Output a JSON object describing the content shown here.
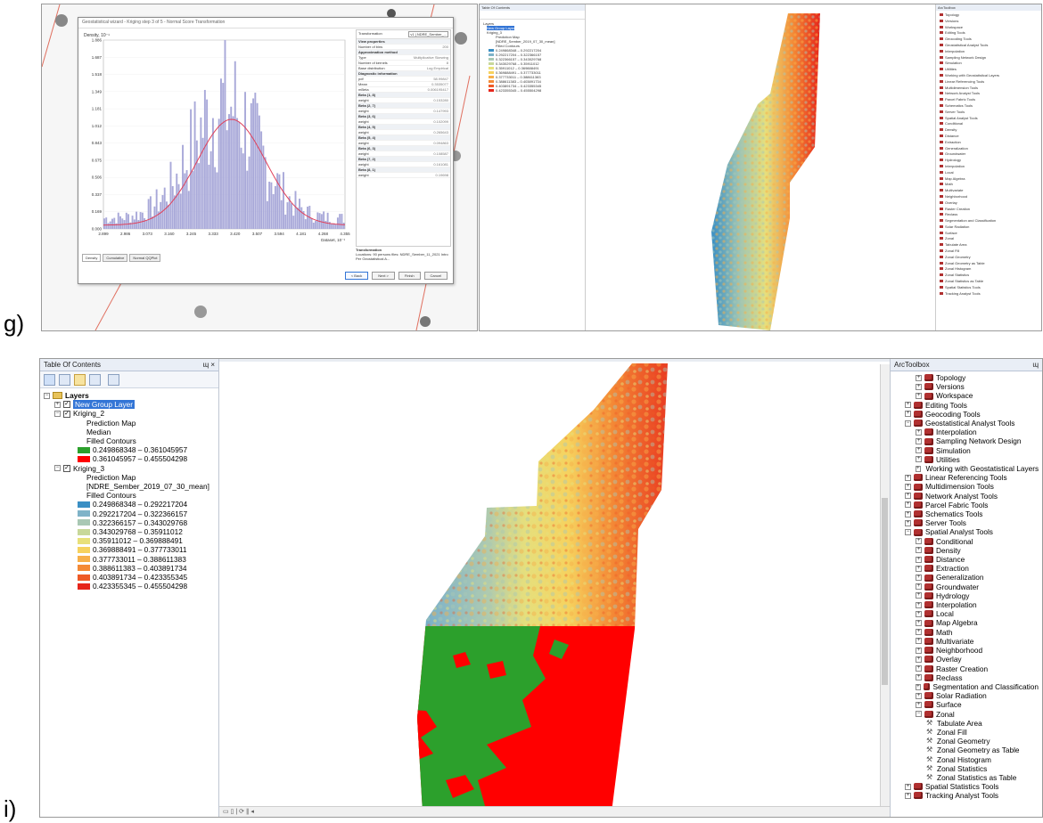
{
  "labels": {
    "g": "g)",
    "i": "i)"
  },
  "top_left": {
    "title": "Geostatistical wizard - Kriging step 3 of 5 - Normal Score Transformation",
    "density_label": "Density, 10⁻¹",
    "y_ticks": [
      "1.886",
      "1.687",
      "1.518",
      "1.349",
      "1.181",
      "1.012",
      "0.843",
      "0.675",
      "0.506",
      "0.337",
      "0.169",
      "0.000"
    ],
    "x_ticks": [
      "2.899",
      "2.986",
      "3.073",
      "3.160",
      "3.245",
      "3.333",
      "3.420",
      "3.507",
      "3.594",
      "4.181",
      "4.268",
      "4.355"
    ],
    "x_unit": "Dataset, 10⁻¹",
    "tabs": [
      "Density",
      "Cumulative",
      "Normal QQPlot"
    ],
    "transformation_select": "v1 | NDRE_Sember_...",
    "props": [
      {
        "k": "Transformation",
        "v": "",
        "h": true
      },
      {
        "k": "View properties",
        "v": "",
        "h": true
      },
      {
        "k": "Number of bins",
        "v": "200"
      },
      {
        "k": "Approximation method",
        "v": "",
        "h": true
      },
      {
        "k": "Type",
        "v": "Multiplicative Skewing"
      },
      {
        "k": "Number of kernels",
        "v": "8"
      },
      {
        "k": "Base distribution",
        "v": "Log Empirical"
      },
      {
        "k": "Diagnostic information",
        "v": "",
        "h": true
      },
      {
        "k": "pdf",
        "v": "58.99847"
      },
      {
        "k": "Mean",
        "v": "0.3535077"
      },
      {
        "k": "mBeta",
        "v": "0.006195417"
      },
      {
        "k": "Beta (1, 8)",
        "v": "",
        "h": true
      },
      {
        "k": "weight",
        "v": "0.153280"
      },
      {
        "k": "Beta (2, 7)",
        "v": "",
        "h": true
      },
      {
        "k": "weight",
        "v": "0.147993"
      },
      {
        "k": "Beta (3, 6)",
        "v": "",
        "h": true
      },
      {
        "k": "weight",
        "v": "0.102099"
      },
      {
        "k": "Beta (4, 5)",
        "v": "",
        "h": true
      },
      {
        "k": "weight",
        "v": "0.265643"
      },
      {
        "k": "Beta (5, 4)",
        "v": "",
        "h": true
      },
      {
        "k": "weight",
        "v": "0.094863"
      },
      {
        "k": "Beta (6, 3)",
        "v": "",
        "h": true
      },
      {
        "k": "weight",
        "v": "0.108587"
      },
      {
        "k": "Beta (7, 2)",
        "v": "",
        "h": true
      },
      {
        "k": "weight",
        "v": "0.161081"
      },
      {
        "k": "Beta (8, 1)",
        "v": "",
        "h": true
      },
      {
        "k": "weight",
        "v": "0.19698"
      }
    ],
    "transformation_note_title": "Transformation",
    "transformation_note": "Locations: 90 persons files: NDRE_Sember_11_2021 Intro Per Geostatistical A...",
    "buttons": [
      "< Back",
      "Next >",
      "Finish",
      "Cancel"
    ]
  },
  "top_right": {
    "toc_title": "Table Of Contents",
    "toolbox_title": "ArcToolbox",
    "toc_rows": [
      "Layers",
      "New Group Layer",
      "Kriging_3",
      "Prediction Map",
      "[NDRE_Sember_2019_07_30_mean]",
      "Filled Contours",
      "0.249868348 – 0.292217204",
      "0.292217204 – 0.322366157",
      "0.322366157 – 0.343029768",
      "0.343029768 – 0.35911012",
      "0.35911012 – 0.369888491",
      "0.369888491 – 0.377733011",
      "0.377733011 – 0.388611383",
      "0.388611383 – 0.403891734",
      "0.403891734 – 0.423355345",
      "0.423355345 – 0.455504298"
    ],
    "toolbox_rows": [
      "Topology",
      "Versions",
      "Workspace",
      "Editing Tools",
      "Geocoding Tools",
      "Geostatistical Analyst Tools",
      "Interpolation",
      "Sampling Network Design",
      "Simulation",
      "Utilities",
      "Working with Geostatistical Layers",
      "Linear Referencing Tools",
      "Multidimension Tools",
      "Network Analyst Tools",
      "Parcel Fabric Tools",
      "Schematics Tools",
      "Server Tools",
      "Spatial Analyst Tools",
      "Conditional",
      "Density",
      "Distance",
      "Extraction",
      "Generalization",
      "Groundwater",
      "Hydrology",
      "Interpolation",
      "Local",
      "Map Algebra",
      "Math",
      "Multivariate",
      "Neighborhood",
      "Overlay",
      "Raster Creation",
      "Reclass",
      "Segmentation and Classification",
      "Solar Radiation",
      "Surface",
      "Zonal",
      "Tabulate Area",
      "Zonal Fill",
      "Zonal Geometry",
      "Zonal Geometry as Table",
      "Zonal Histogram",
      "Zonal Statistics",
      "Zonal Statistics as Table",
      "Spatial Statistics Tools",
      "Tracking Analyst Tools"
    ]
  },
  "bottom": {
    "toc": {
      "title": "Table Of Contents",
      "pin_close": "ɰ ×",
      "layers": "Layers",
      "new_group": "New Group Layer",
      "kriging2": {
        "name": "Kriging_2",
        "pred": "Prediction Map",
        "field": "Median",
        "contours": "Filled Contours",
        "classes": [
          {
            "label": "0.249868348 – 0.361045957",
            "color": "#2ca02c"
          },
          {
            "label": "0.361045957 – 0.455504298",
            "color": "#ff0000"
          }
        ]
      },
      "kriging3": {
        "name": "Kriging_3",
        "pred": "Prediction Map",
        "field": "[NDRE_Sember_2019_07_30_mean]",
        "contours": "Filled Contours",
        "classes": [
          {
            "label": "0.249868348 – 0.292217204",
            "color": "#3a8fc4"
          },
          {
            "label": "0.292217204 – 0.322366157",
            "color": "#7fb3c8"
          },
          {
            "label": "0.322366157 – 0.343029768",
            "color": "#a9c8b4"
          },
          {
            "label": "0.343029768 – 0.35911012",
            "color": "#c8d89a"
          },
          {
            "label": "0.35911012 – 0.369888491",
            "color": "#e8e07a"
          },
          {
            "label": "0.369888491 – 0.377733011",
            "color": "#f6d25e"
          },
          {
            "label": "0.377733011 – 0.388611383",
            "color": "#f7b04a"
          },
          {
            "label": "0.388611383 – 0.403891734",
            "color": "#f48a36"
          },
          {
            "label": "0.403891734 – 0.423355345",
            "color": "#ee5a26"
          },
          {
            "label": "0.423355345 – 0.455504298",
            "color": "#e6251b"
          }
        ]
      }
    },
    "toolbox": {
      "title": "ArcToolbox",
      "rows": [
        {
          "t": "Topology",
          "lvl": 1,
          "type": "set"
        },
        {
          "t": "Versions",
          "lvl": 1,
          "type": "set"
        },
        {
          "t": "Workspace",
          "lvl": 1,
          "type": "set"
        },
        {
          "t": "Editing Tools",
          "lvl": 0,
          "type": "box"
        },
        {
          "t": "Geocoding Tools",
          "lvl": 0,
          "type": "box"
        },
        {
          "t": "Geostatistical Analyst Tools",
          "lvl": 0,
          "type": "box",
          "open": true
        },
        {
          "t": "Interpolation",
          "lvl": 1,
          "type": "set"
        },
        {
          "t": "Sampling Network Design",
          "lvl": 1,
          "type": "set"
        },
        {
          "t": "Simulation",
          "lvl": 1,
          "type": "set"
        },
        {
          "t": "Utilities",
          "lvl": 1,
          "type": "set"
        },
        {
          "t": "Working with Geostatistical Layers",
          "lvl": 1,
          "type": "set"
        },
        {
          "t": "Linear Referencing Tools",
          "lvl": 0,
          "type": "box"
        },
        {
          "t": "Multidimension Tools",
          "lvl": 0,
          "type": "box"
        },
        {
          "t": "Network Analyst Tools",
          "lvl": 0,
          "type": "box"
        },
        {
          "t": "Parcel Fabric Tools",
          "lvl": 0,
          "type": "box"
        },
        {
          "t": "Schematics Tools",
          "lvl": 0,
          "type": "box"
        },
        {
          "t": "Server Tools",
          "lvl": 0,
          "type": "box"
        },
        {
          "t": "Spatial Analyst Tools",
          "lvl": 0,
          "type": "box",
          "open": true
        },
        {
          "t": "Conditional",
          "lvl": 1,
          "type": "set"
        },
        {
          "t": "Density",
          "lvl": 1,
          "type": "set"
        },
        {
          "t": "Distance",
          "lvl": 1,
          "type": "set"
        },
        {
          "t": "Extraction",
          "lvl": 1,
          "type": "set"
        },
        {
          "t": "Generalization",
          "lvl": 1,
          "type": "set"
        },
        {
          "t": "Groundwater",
          "lvl": 1,
          "type": "set"
        },
        {
          "t": "Hydrology",
          "lvl": 1,
          "type": "set"
        },
        {
          "t": "Interpolation",
          "lvl": 1,
          "type": "set"
        },
        {
          "t": "Local",
          "lvl": 1,
          "type": "set"
        },
        {
          "t": "Map Algebra",
          "lvl": 1,
          "type": "set"
        },
        {
          "t": "Math",
          "lvl": 1,
          "type": "set"
        },
        {
          "t": "Multivariate",
          "lvl": 1,
          "type": "set"
        },
        {
          "t": "Neighborhood",
          "lvl": 1,
          "type": "set"
        },
        {
          "t": "Overlay",
          "lvl": 1,
          "type": "set"
        },
        {
          "t": "Raster Creation",
          "lvl": 1,
          "type": "set"
        },
        {
          "t": "Reclass",
          "lvl": 1,
          "type": "set"
        },
        {
          "t": "Segmentation and Classification",
          "lvl": 1,
          "type": "set"
        },
        {
          "t": "Solar Radiation",
          "lvl": 1,
          "type": "set"
        },
        {
          "t": "Surface",
          "lvl": 1,
          "type": "set"
        },
        {
          "t": "Zonal",
          "lvl": 1,
          "type": "set",
          "open": true
        },
        {
          "t": "Tabulate Area",
          "lvl": 2,
          "type": "tool"
        },
        {
          "t": "Zonal Fill",
          "lvl": 2,
          "type": "tool"
        },
        {
          "t": "Zonal Geometry",
          "lvl": 2,
          "type": "tool"
        },
        {
          "t": "Zonal Geometry as Table",
          "lvl": 2,
          "type": "tool"
        },
        {
          "t": "Zonal Histogram",
          "lvl": 2,
          "type": "tool"
        },
        {
          "t": "Zonal Statistics",
          "lvl": 2,
          "type": "tool"
        },
        {
          "t": "Zonal Statistics as Table",
          "lvl": 2,
          "type": "tool"
        },
        {
          "t": "Spatial Statistics Tools",
          "lvl": 0,
          "type": "box"
        },
        {
          "t": "Tracking Analyst Tools",
          "lvl": 0,
          "type": "box"
        }
      ]
    },
    "colors": {
      "green": "#2ca02c",
      "red": "#ff0000"
    }
  }
}
